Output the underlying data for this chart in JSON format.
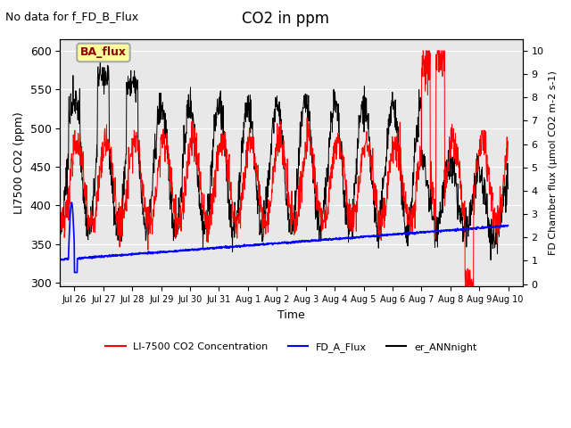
{
  "title": "CO2 in ppm",
  "top_text": "No data for f_FD_B_Flux",
  "ylabel_left": "LI7500 CO2 (ppm)",
  "ylabel_right": "FD Chamber flux (μmol CO2 m-2 s-1)",
  "xlabel": "Time",
  "ylim_left": [
    295,
    615
  ],
  "ylim_right": [
    -0.1,
    10.5
  ],
  "yticks_left": [
    300,
    350,
    400,
    450,
    500,
    550,
    600
  ],
  "yticks_right": [
    0.0,
    1.0,
    2.0,
    3.0,
    4.0,
    5.0,
    6.0,
    7.0,
    8.0,
    9.0,
    10.0
  ],
  "xtick_labels": [
    "Jul 26",
    "Jul 27",
    "Jul 28",
    "Jul 29",
    "Jul 30",
    "Jul 31",
    "Aug 1",
    "Aug 2",
    "Aug 3",
    "Aug 4",
    "Aug 5",
    "Aug 6",
    "Aug 7",
    "Aug 8",
    "Aug 9",
    "Aug 10"
  ],
  "legend_entries": [
    "LI-7500 CO2 Concentration",
    "FD_A_Flux",
    "er_ANNnight"
  ],
  "legend_colors": [
    "red",
    "blue",
    "black"
  ],
  "box_label": "BA_flux",
  "box_color": "#ffff99",
  "box_text_color": "darkred",
  "background_color": "#e8e8e8",
  "line_color_red": "red",
  "line_color_blue": "blue",
  "line_color_black": "black"
}
